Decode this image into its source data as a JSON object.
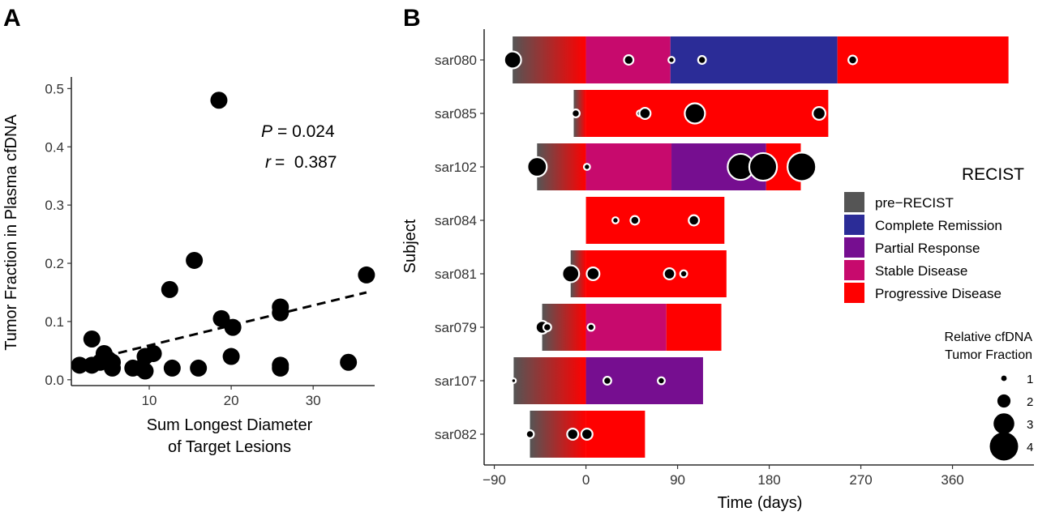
{
  "chart_data": [
    {
      "panel": "A",
      "type": "scatter",
      "xlabel": [
        "Sum Longest Diameter",
        "of Target Lesions"
      ],
      "ylabel": "Tumor Fraction in Plasma cfDNA",
      "xticks": [
        10,
        20,
        30
      ],
      "yticks": [
        0.0,
        0.1,
        0.2,
        0.3,
        0.4,
        0.5
      ],
      "ytick_labels": [
        "0.0",
        "0.1",
        "0.2",
        "0.3",
        "0.4",
        "0.5"
      ],
      "xlim": [
        0.5,
        37.5
      ],
      "ylim": [
        -0.01,
        0.52
      ],
      "annotations": {
        "p_label": "P",
        "p_value": "= 0.024",
        "r_label": "r",
        "r_value": "=  0.387"
      },
      "trendline": {
        "style": "dashed",
        "x": [
          4.5,
          36.5
        ],
        "y": [
          0.04,
          0.15
        ]
      },
      "points": [
        {
          "x": 1.5,
          "y": 0.025
        },
        {
          "x": 3.0,
          "y": 0.07
        },
        {
          "x": 3.0,
          "y": 0.025
        },
        {
          "x": 4.0,
          "y": 0.03
        },
        {
          "x": 4.5,
          "y": 0.045
        },
        {
          "x": 5.0,
          "y": 0.035
        },
        {
          "x": 5.5,
          "y": 0.02
        },
        {
          "x": 5.5,
          "y": 0.03
        },
        {
          "x": 8.0,
          "y": 0.02
        },
        {
          "x": 9.0,
          "y": 0.02
        },
        {
          "x": 9.5,
          "y": 0.04
        },
        {
          "x": 9.5,
          "y": 0.015
        },
        {
          "x": 10.5,
          "y": 0.045
        },
        {
          "x": 12.5,
          "y": 0.155
        },
        {
          "x": 12.8,
          "y": 0.02
        },
        {
          "x": 15.5,
          "y": 0.205
        },
        {
          "x": 16.0,
          "y": 0.02
        },
        {
          "x": 18.5,
          "y": 0.48
        },
        {
          "x": 18.8,
          "y": 0.105
        },
        {
          "x": 20.0,
          "y": 0.04
        },
        {
          "x": 20.2,
          "y": 0.09
        },
        {
          "x": 26.0,
          "y": 0.125
        },
        {
          "x": 26.0,
          "y": 0.115
        },
        {
          "x": 26.0,
          "y": 0.02
        },
        {
          "x": 26.0,
          "y": 0.025
        },
        {
          "x": 34.3,
          "y": 0.03
        },
        {
          "x": 36.5,
          "y": 0.18
        }
      ]
    },
    {
      "panel": "B",
      "type": "bar",
      "subtype": "swimmer",
      "xlabel": "Time (days)",
      "ylabel": "Subject",
      "xticks": [
        -90,
        0,
        90,
        180,
        270,
        360
      ],
      "xtick_labels": [
        "−90",
        "0",
        "90",
        "180",
        "270",
        "360"
      ],
      "xlim": [
        -100,
        440
      ],
      "categories": [
        "sar080",
        "sar085",
        "sar102",
        "sar084",
        "sar081",
        "sar079",
        "sar107",
        "sar082"
      ],
      "legend": {
        "title": "RECIST",
        "placement": "right",
        "items": [
          {
            "key": "pre",
            "label": "pre−RECIST",
            "color": "#555555"
          },
          {
            "key": "cr",
            "label": "Complete Remission",
            "color": "#2b2c97"
          },
          {
            "key": "pr",
            "label": "Partial Response",
            "color": "#760e90"
          },
          {
            "key": "sd",
            "label": "Stable Disease",
            "color": "#c70a6d"
          },
          {
            "key": "pd",
            "label": "Progressive Disease",
            "color": "#ff0000"
          }
        ]
      },
      "size_legend": {
        "title": [
          "Relative cfDNA",
          "Tumor Fraction"
        ],
        "values": [
          1,
          2,
          3,
          4
        ],
        "labels": [
          "1",
          "2",
          "3",
          "4"
        ]
      },
      "subjects": [
        {
          "name": "sar080",
          "segments": [
            {
              "start": -72,
              "end": 0,
              "status": "pre"
            },
            {
              "start": 0,
              "end": 83,
              "status": "sd"
            },
            {
              "start": 83,
              "end": 247,
              "status": "cr"
            },
            {
              "start": 247,
              "end": 415,
              "status": "pd"
            }
          ],
          "samples": [
            {
              "day": -72,
              "size": 2.3
            },
            {
              "day": 42,
              "size": 1.4
            },
            {
              "day": 84,
              "size": 1.0
            },
            {
              "day": 114,
              "size": 1.2
            },
            {
              "day": 262,
              "size": 1.3
            }
          ]
        },
        {
          "name": "sar085",
          "segments": [
            {
              "start": -12,
              "end": 0,
              "status": "pre"
            },
            {
              "start": 0,
              "end": 238,
              "status": "pd"
            }
          ],
          "samples": [
            {
              "day": -10,
              "size": 1.2
            },
            {
              "day": 53,
              "size": 1.0
            },
            {
              "day": 58,
              "size": 1.6
            },
            {
              "day": 107,
              "size": 2.7
            },
            {
              "day": 229,
              "size": 1.8
            }
          ]
        },
        {
          "name": "sar102",
          "segments": [
            {
              "start": -48,
              "end": 0,
              "status": "pre"
            },
            {
              "start": 0,
              "end": 84,
              "status": "sd"
            },
            {
              "start": 84,
              "end": 177,
              "status": "pr"
            },
            {
              "start": 177,
              "end": 211,
              "status": "pd"
            }
          ],
          "samples": [
            {
              "day": -48,
              "size": 2.6
            },
            {
              "day": 1,
              "size": 1.0
            },
            {
              "day": 152,
              "size": 3.4
            },
            {
              "day": 174,
              "size": 3.6
            },
            {
              "day": 212,
              "size": 3.7
            }
          ]
        },
        {
          "name": "sar084",
          "segments": [
            {
              "start": 0,
              "end": 136,
              "status": "pd"
            }
          ],
          "samples": [
            {
              "day": 29,
              "size": 1.0
            },
            {
              "day": 48,
              "size": 1.3
            },
            {
              "day": 106,
              "size": 1.5
            }
          ]
        },
        {
          "name": "sar081",
          "segments": [
            {
              "start": -15,
              "end": 0,
              "status": "pre"
            },
            {
              "start": 0,
              "end": 138,
              "status": "pd"
            }
          ],
          "samples": [
            {
              "day": -15,
              "size": 2.3
            },
            {
              "day": 7,
              "size": 1.8
            },
            {
              "day": 82,
              "size": 1.6
            },
            {
              "day": 96,
              "size": 1.1
            }
          ]
        },
        {
          "name": "sar079",
          "segments": [
            {
              "start": -43,
              "end": 0,
              "status": "pre"
            },
            {
              "start": 0,
              "end": 79,
              "status": "sd"
            },
            {
              "start": 79,
              "end": 133,
              "status": "pd"
            }
          ],
          "samples": [
            {
              "day": -43,
              "size": 1.8
            },
            {
              "day": -38,
              "size": 1.2
            },
            {
              "day": 5,
              "size": 1.1
            }
          ]
        },
        {
          "name": "sar107",
          "segments": [
            {
              "start": -71,
              "end": 0,
              "status": "pre"
            },
            {
              "start": 0,
              "end": 115,
              "status": "pr"
            }
          ],
          "samples": [
            {
              "day": -71,
              "size": 0.8
            },
            {
              "day": 21,
              "size": 1.2
            },
            {
              "day": 74,
              "size": 1.1
            }
          ]
        },
        {
          "name": "sar082",
          "segments": [
            {
              "start": -55,
              "end": 0,
              "status": "pre"
            },
            {
              "start": 0,
              "end": 58,
              "status": "pd"
            }
          ],
          "samples": [
            {
              "day": -55,
              "size": 1.2
            },
            {
              "day": -13,
              "size": 1.6
            },
            {
              "day": 1,
              "size": 1.6
            }
          ]
        }
      ]
    }
  ]
}
